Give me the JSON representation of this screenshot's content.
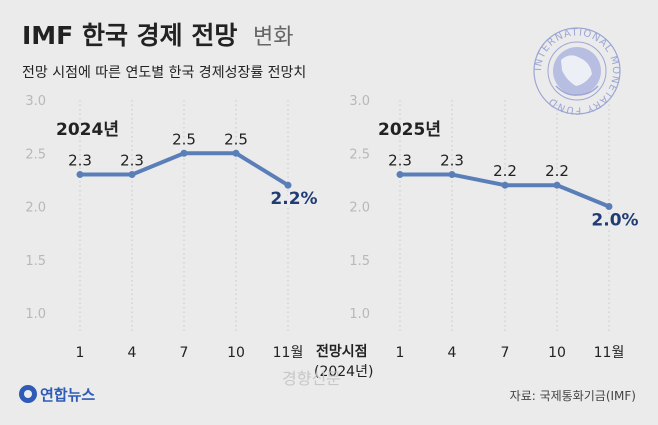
{
  "title_main": "IMF 한국 경제 전망",
  "title_sub": "변화",
  "subtitle": "전망 시점에 따른 연도별 한국 경제성장률 전망치",
  "x_axis_label_line1": "전망시점",
  "x_axis_label_line2": "(2024년)",
  "logo_text": "연합뉴스",
  "source": "자료: 국제통화기금(IMF)",
  "watermark": "경향신문",
  "imf_seal": {
    "text": "INTERNATIONAL MONETARY FUND"
  },
  "colors": {
    "line": "#5a7fb8",
    "last_label": "#1f3c73",
    "text": "#222222",
    "tick": "#b8b8b8",
    "grid": "#c9c9c9"
  },
  "chart_data": [
    {
      "type": "line",
      "title": "2024년",
      "categories": [
        "1",
        "4",
        "7",
        "10",
        "11월"
      ],
      "values": [
        2.3,
        2.3,
        2.5,
        2.5,
        2.2
      ],
      "data_labels": [
        "2.3",
        "2.3",
        "2.5",
        "2.5",
        "2.2%"
      ],
      "y_ticks": [
        "1.0",
        "1.5",
        "2.0",
        "2.5",
        "3.0"
      ],
      "ylim": [
        1.0,
        3.0
      ],
      "grid": "dotted vertical"
    },
    {
      "type": "line",
      "title": "2025년",
      "categories": [
        "1",
        "4",
        "7",
        "10",
        "11월"
      ],
      "values": [
        2.3,
        2.3,
        2.2,
        2.2,
        2.0
      ],
      "data_labels": [
        "2.3",
        "2.3",
        "2.2",
        "2.2",
        "2.0%"
      ],
      "y_ticks": [
        "1.0",
        "1.5",
        "2.0",
        "2.5",
        "3.0"
      ],
      "ylim": [
        1.0,
        3.0
      ],
      "grid": "dotted vertical"
    }
  ]
}
